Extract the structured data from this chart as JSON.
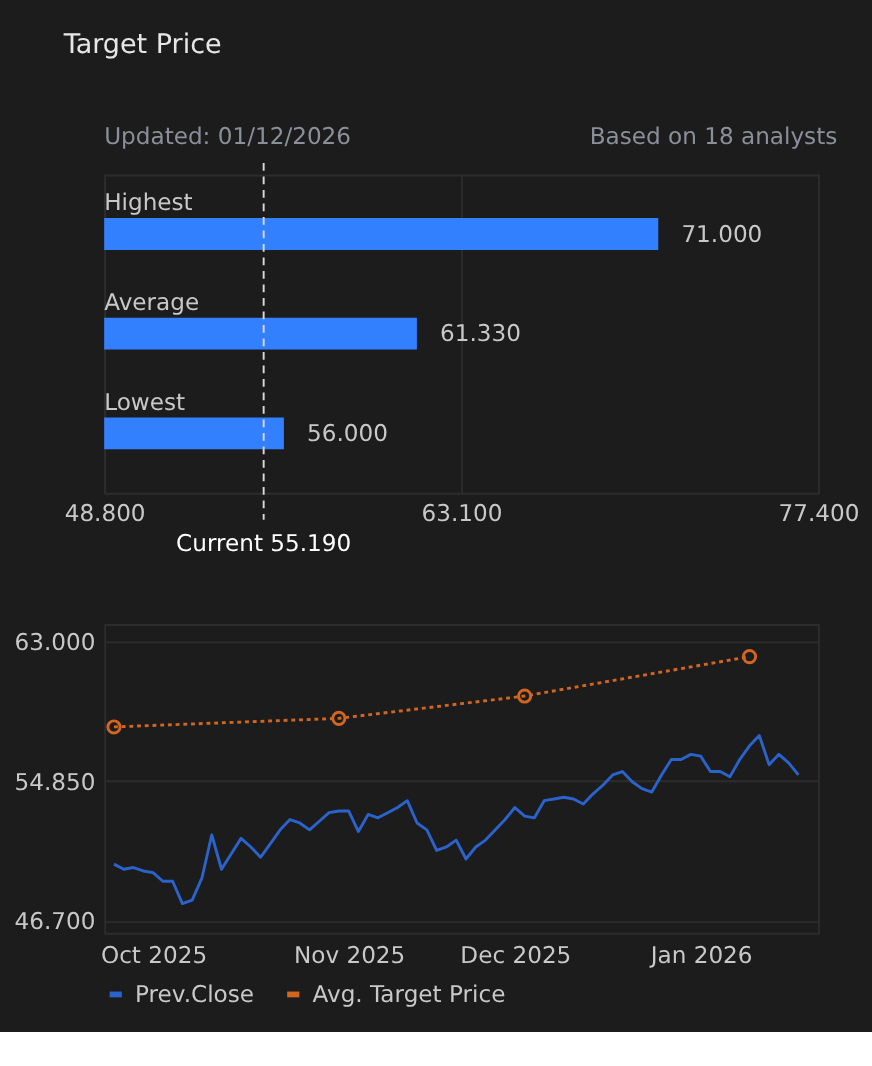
{
  "chart_data": [
    {
      "type": "bar",
      "orientation": "horizontal",
      "title": "Target Price",
      "annotations": [
        "Updated: 01/12/2026",
        "Based on 18 analysts"
      ],
      "categories": [
        "Highest",
        "Average",
        "Lowest"
      ],
      "values": [
        71.0,
        61.33,
        56.0
      ],
      "color": "#3380ff",
      "value_labels": [
        "71.000",
        "61.330",
        "56.000"
      ],
      "xlim": [
        48.8,
        77.4
      ],
      "xticks": [
        {
          "value": 48.8,
          "label": "48.800"
        },
        {
          "value": 63.1,
          "label": "63.100"
        },
        {
          "value": 77.4,
          "label": "77.400"
        }
      ],
      "ref_lines": [
        {
          "axis": "x",
          "value": 55.19,
          "label": "Current 55.190",
          "color": "#d9d9d9",
          "line_style": "dashed"
        }
      ],
      "grid": "x"
    },
    {
      "type": "line",
      "categories": [
        null,
        null,
        null,
        null,
        "Oct 2025",
        null,
        null,
        null,
        null,
        null,
        null,
        null,
        null,
        null,
        null,
        null,
        null,
        null,
        null,
        null,
        null,
        null,
        null,
        null,
        "Nov 2025",
        null,
        null,
        null,
        null,
        null,
        null,
        null,
        null,
        null,
        null,
        null,
        null,
        null,
        null,
        null,
        null,
        "Dec 2025",
        null,
        null,
        null,
        null,
        null,
        null,
        null,
        null,
        null,
        null,
        null,
        null,
        null,
        null,
        null,
        null,
        null,
        null,
        "Jan 2026",
        null,
        null,
        null,
        null,
        null,
        null,
        null,
        null,
        null,
        null
      ],
      "series": [
        {
          "name": "Prev.Close",
          "color": "#2b63cc",
          "marker": "none",
          "line_style": "solid",
          "values": [
            50.0,
            49.7,
            49.8,
            49.6,
            49.5,
            49.0,
            49.0,
            47.7,
            47.9,
            49.2,
            51.7,
            49.7,
            50.6,
            51.5,
            51.0,
            50.4,
            51.2,
            52.0,
            52.6,
            52.4,
            52.0,
            52.5,
            53.0,
            53.1,
            53.1,
            51.9,
            52.9,
            52.7,
            53.0,
            53.3,
            53.7,
            52.4,
            52.0,
            50.8,
            51.0,
            51.4,
            50.3,
            51.0,
            51.4,
            52.0,
            52.6,
            53.3,
            52.8,
            52.7,
            53.7,
            53.8,
            53.9,
            53.8,
            53.5,
            54.1,
            54.6,
            55.2,
            55.4,
            54.8,
            54.4,
            54.2,
            55.2,
            56.1,
            56.1,
            56.4,
            56.3,
            55.4,
            55.4,
            55.1,
            56.1,
            56.9,
            57.5,
            55.8,
            56.4,
            55.9,
            55.2
          ]
        },
        {
          "name": "Avg. Target Price",
          "color": "#d2661e",
          "marker": "circle",
          "line_style": "dotted",
          "values": [
            58.0,
            null,
            null,
            null,
            null,
            null,
            null,
            null,
            null,
            null,
            null,
            null,
            null,
            null,
            null,
            null,
            null,
            null,
            null,
            null,
            null,
            null,
            null,
            58.5,
            null,
            null,
            null,
            null,
            null,
            null,
            null,
            null,
            null,
            null,
            null,
            null,
            null,
            null,
            null,
            null,
            null,
            null,
            59.8,
            null,
            null,
            null,
            null,
            null,
            null,
            null,
            null,
            null,
            null,
            null,
            null,
            null,
            null,
            null,
            null,
            null,
            null,
            null,
            null,
            null,
            null,
            62.1,
            null,
            null,
            null,
            null,
            null
          ]
        }
      ],
      "ylim": [
        46.0,
        64.0
      ],
      "yticks": [
        {
          "value": 46.7,
          "label": "46.700"
        },
        {
          "value": 54.85,
          "label": "54.850"
        },
        {
          "value": 63.0,
          "label": "63.000"
        }
      ],
      "grid": "y",
      "legend": "bottom"
    }
  ]
}
